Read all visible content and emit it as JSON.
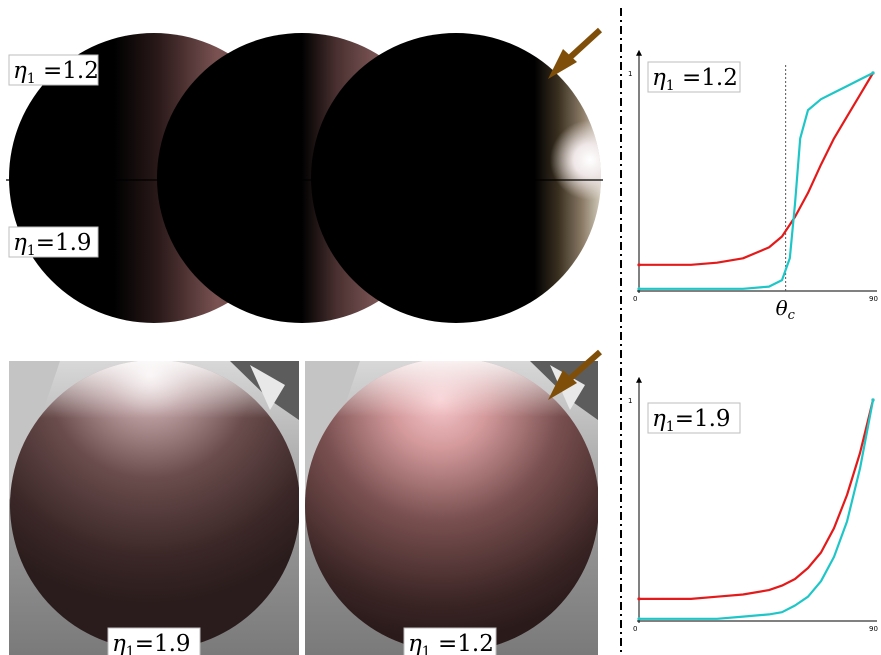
{
  "figure": {
    "panels": {
      "top_spheres": {
        "label_upper": {
          "symbol": "η",
          "sub": "1",
          "text": " =1.2"
        },
        "label_lower": {
          "symbol": "η",
          "sub": "1",
          "text": "=1.9"
        }
      },
      "bottom_spheres": {
        "left_label": {
          "symbol": "η",
          "sub": "1",
          "text": "=1.9"
        },
        "right_label": {
          "symbol": "η",
          "sub": "1",
          "text": " =1.2"
        }
      },
      "arrow_color": "#7f4f0a"
    }
  },
  "chart_data": [
    {
      "type": "line",
      "legend_label": {
        "symbol": "η",
        "sub": "1",
        "text": " =1.2"
      },
      "xlim": [
        0,
        90
      ],
      "ylim": [
        0,
        1
      ],
      "x_ticks": [
        "0",
        "90"
      ],
      "y_ticks": [
        "1"
      ],
      "critical_angle_label": "θc",
      "critical_angle": 56.4,
      "series": [
        {
          "color": "#e41a1a",
          "x": [
            0,
            10,
            20,
            30,
            40,
            50,
            55,
            60,
            65,
            70,
            75,
            80,
            85,
            90
          ],
          "y": [
            0.12,
            0.12,
            0.12,
            0.13,
            0.15,
            0.2,
            0.25,
            0.34,
            0.45,
            0.58,
            0.7,
            0.8,
            0.9,
            1.0
          ]
        },
        {
          "color": "#1fc6c8",
          "x": [
            0,
            10,
            20,
            30,
            40,
            50,
            55,
            58,
            60,
            62,
            65,
            70,
            75,
            80,
            85,
            90
          ],
          "y": [
            0.01,
            0.01,
            0.01,
            0.01,
            0.01,
            0.02,
            0.05,
            0.15,
            0.4,
            0.7,
            0.83,
            0.88,
            0.91,
            0.94,
            0.97,
            1.0
          ]
        }
      ]
    },
    {
      "type": "line",
      "legend_label": {
        "symbol": "η",
        "sub": "1",
        "text": "=1.9"
      },
      "xlim": [
        0,
        90
      ],
      "ylim": [
        0,
        1
      ],
      "x_ticks": [
        "0",
        "90"
      ],
      "y_ticks": [
        "1"
      ],
      "series": [
        {
          "color": "#e41a1a",
          "x": [
            0,
            10,
            20,
            30,
            40,
            50,
            55,
            60,
            65,
            70,
            75,
            80,
            85,
            90
          ],
          "y": [
            0.1,
            0.1,
            0.1,
            0.11,
            0.12,
            0.14,
            0.16,
            0.19,
            0.24,
            0.31,
            0.42,
            0.57,
            0.76,
            1.0
          ]
        },
        {
          "color": "#1fc6c8",
          "x": [
            0,
            10,
            20,
            30,
            40,
            50,
            55,
            60,
            65,
            70,
            75,
            80,
            85,
            90
          ],
          "y": [
            0.01,
            0.01,
            0.01,
            0.01,
            0.02,
            0.03,
            0.04,
            0.07,
            0.11,
            0.18,
            0.29,
            0.45,
            0.69,
            1.0
          ]
        }
      ]
    }
  ]
}
